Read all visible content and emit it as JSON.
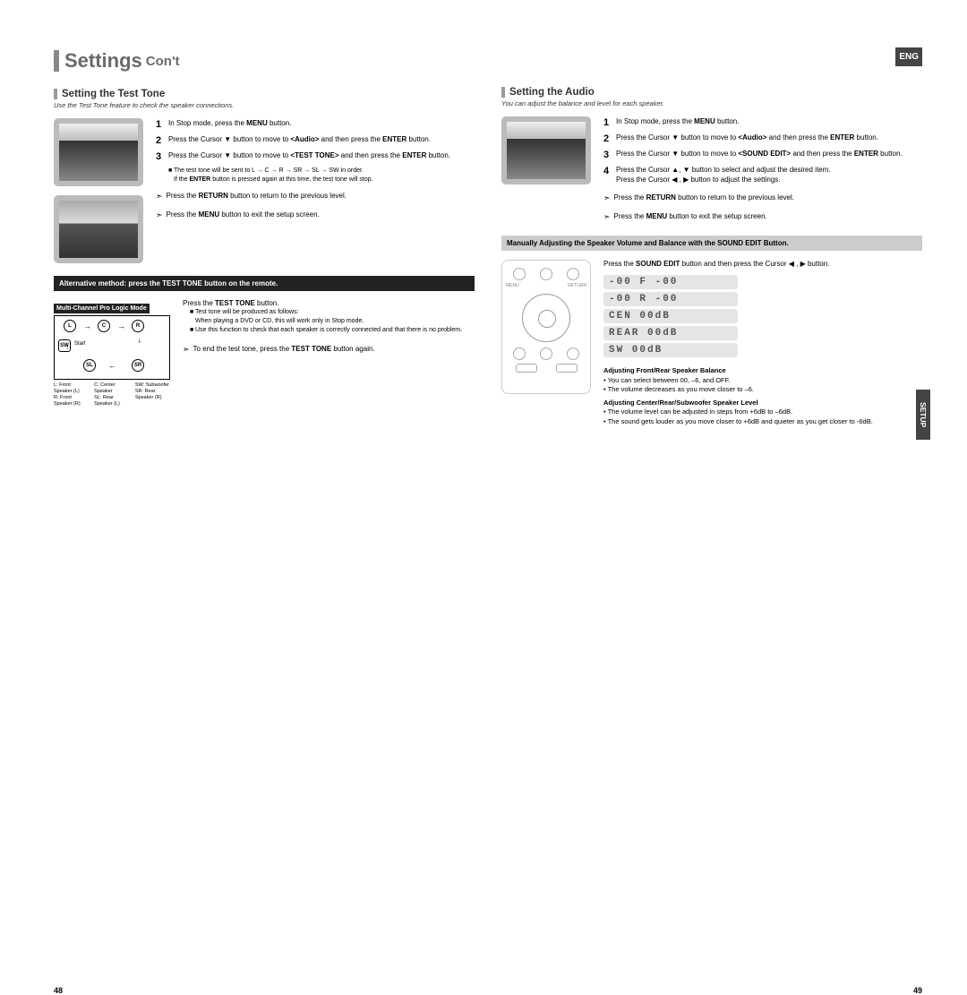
{
  "header": {
    "title": "Settings",
    "subtitle": "Con't",
    "lang_badge": "ENG"
  },
  "left_page": {
    "number": "48",
    "section_title": "Setting the Test Tone",
    "section_desc": "Use the Test Tone feature to check the speaker connections.",
    "steps": [
      {
        "n": "1",
        "html": "In Stop mode, press the <b>MENU</b> button."
      },
      {
        "n": "2",
        "html": "Press the Cursor ▼ button to move to <b>&lt;Audio&gt;</b> and then press the <b>ENTER</b> button."
      },
      {
        "n": "3",
        "html": "Press the Cursor ▼ button to move to <b>&lt;TEST TONE&gt;</b> and then press the <b>ENTER</b> button."
      }
    ],
    "sub_bullets": [
      "The test tone will be sent to L → C → R → SR → SL → SW in order.",
      "If the <b>ENTER</b> button is pressed again at this time, the test tone will stop."
    ],
    "returns": [
      "Press the <b>RETURN</b> button to return to the previous level.",
      "Press the <b>MENU</b> button to exit the setup screen."
    ],
    "black_bar": "Alternative method: press the TEST TONE button on the remote.",
    "mode_label": "Multi-Channel Pro Logic Mode",
    "speakers": {
      "L": "L",
      "C": "C",
      "R": "R",
      "SW": "SW",
      "SL": "SL",
      "SR": "SR",
      "start": "Start"
    },
    "legend": {
      "col1": [
        "L: Front Speaker (L)",
        "R: Front Speaker (R)"
      ],
      "col2": [
        "C: Center Speaker",
        "SL: Rear Speaker (L)"
      ],
      "col3": [
        "SW: Subwoofer",
        "SR: Rear Speaker (R)"
      ]
    },
    "lower_main": "Press the <b>TEST TONE</b> button.",
    "lower_bullets": [
      "Test tone will be produced as follows:<br>When playing a DVD or CD, this will work only in Stop mode.",
      "Use this function to check that each speaker is correctly connected and that there is no problem."
    ],
    "lower_end": "To end the test tone, press the <b>TEST TONE</b> button again."
  },
  "right_page": {
    "number": "49",
    "section_title": "Setting the Audio",
    "section_desc": "You can adjust the balance and level for each speaker.",
    "steps": [
      {
        "n": "1",
        "html": "In Stop mode, press the <b>MENU</b> button."
      },
      {
        "n": "2",
        "html": "Press the Cursor ▼ button to move to <b>&lt;Audio&gt;</b> and then press the <b>ENTER</b> button."
      },
      {
        "n": "3",
        "html": "Press the Cursor ▼ button to move to <b>&lt;SOUND EDIT&gt;</b> and then press the <b>ENTER</b> button."
      },
      {
        "n": "4",
        "html": "Press the Cursor ▲, ▼ button to select and adjust the desired item.<br>Press the Cursor ◀ , ▶ button to adjust the settings."
      }
    ],
    "returns": [
      "Press the <b>RETURN</b> button to return to the previous level.",
      "Press the <b>MENU</b> button to exit the setup screen."
    ],
    "grey_bar": "Manually Adjusting the Speaker Volume and Balance with the SOUND EDIT Button.",
    "sound_edit_line": "Press the <b>SOUND EDIT</b> button and then press the Cursor ◀ , ▶ button.",
    "lcd": [
      "-00 F -00",
      "-00 R -00",
      "CEN  00dB",
      "REAR 00dB",
      "SW   00dB"
    ],
    "adj": {
      "h1": "Adjusting Front/Rear Speaker Balance",
      "l1": "You can select between 00, –6, and OFF.",
      "l2": "The volume decreases as you move closer to –6.",
      "h2": "Adjusting Center/Rear/Subwoofer Speaker Level",
      "l3": "The volume level can be adjusted in steps from +6dB to –6dB.",
      "l4": "The sound gets louder as you move closer to +6dB and quieter as you get closer to -6dB."
    },
    "setup_tab": "SETUP"
  }
}
